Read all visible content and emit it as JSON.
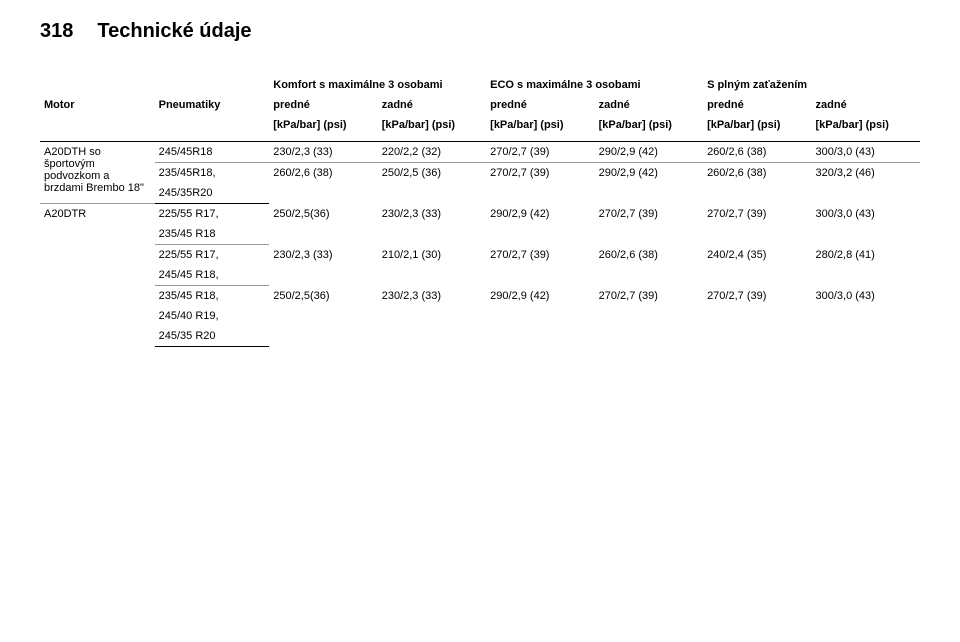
{
  "page": {
    "number": "318",
    "title": "Technické údaje"
  },
  "headers": {
    "group1": "Komfort s maximálne 3 osobami",
    "group2": "ECO s maximálne 3 osobami",
    "group3": "S plným zaťažením",
    "motor": "Motor",
    "tires": "Pneumatiky",
    "front": "predné",
    "rear": "zadné",
    "unit1": "[kPa/bar] (psi)",
    "unit2": "[kPa/bar] (psi)",
    "unit3": "[kPa/bar] (psi)",
    "unit4": "[kPa/bar] (psi)",
    "unit5": "[kPa/bar] (psi)",
    "unit6": "[kPa/bar] (psi)"
  },
  "rows": [
    {
      "motor": "A20DTH so športovým podvozkom a brzdami Brembo 18\"",
      "subrows": [
        {
          "tires": [
            "245/45R18"
          ],
          "vals": [
            "230/2,3 (33)",
            "220/2,2 (32)",
            "270/2,7 (39)",
            "290/2,9 (42)",
            "260/2,6 (38)",
            "300/3,0 (43)"
          ]
        },
        {
          "tires": [
            "235/45R18,",
            "245/35R20"
          ],
          "vals": [
            "260/2,6 (38)",
            "250/2,5 (36)",
            "270/2,7 (39)",
            "290/2,9 (42)",
            "260/2,6 (38)",
            "320/3,2 (46)"
          ]
        }
      ]
    },
    {
      "motor": "A20DTR",
      "subrows": [
        {
          "tires": [
            "225/55 R17,",
            "235/45 R18"
          ],
          "vals": [
            "250/2,5(36)",
            "230/2,3 (33)",
            "290/2,9 (42)",
            "270/2,7 (39)",
            "270/2,7 (39)",
            "300/3,0 (43)"
          ]
        },
        {
          "tires": [
            "225/55 R17,",
            "245/45 R18,"
          ],
          "vals": [
            "230/2,3 (33)",
            "210/2,1 (30)",
            "270/2,7 (39)",
            "260/2,6 (38)",
            "240/2,4 (35)",
            "280/2,8 (41)"
          ]
        },
        {
          "tires": [
            "235/45 R18,",
            "245/40 R19,",
            "245/35 R20"
          ],
          "vals": [
            "250/2,5(36)",
            "230/2,3 (33)",
            "290/2,9 (42)",
            "270/2,7 (39)",
            "270/2,7 (39)",
            "300/3,0 (43)"
          ]
        }
      ]
    }
  ]
}
